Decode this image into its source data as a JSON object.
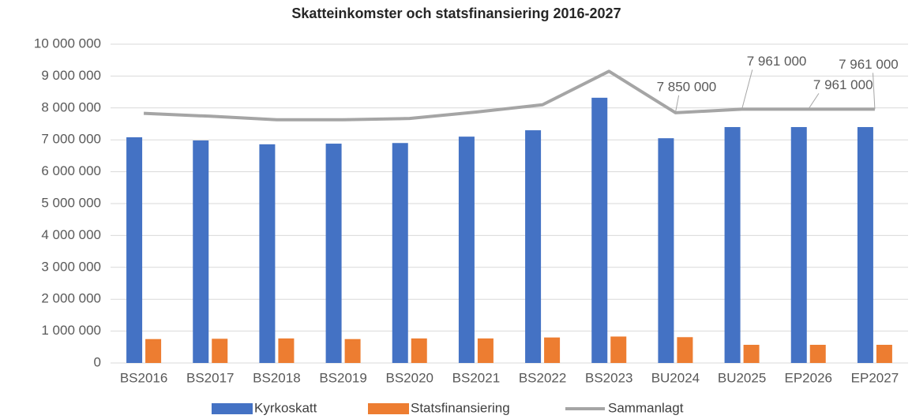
{
  "chart_data": {
    "type": "bar",
    "title": "Skatteinkomster och statsfinansiering 2016-2027",
    "categories": [
      "BS2016",
      "BS2017",
      "BS2018",
      "BS2019",
      "BS2020",
      "BS2021",
      "BS2022",
      "BS2023",
      "BU2024",
      "BU2025",
      "EP2026",
      "EP2027"
    ],
    "series": [
      {
        "name": "Kyrkoskatt",
        "type": "bar",
        "color": "#4472c4",
        "values": [
          7080000,
          6980000,
          6860000,
          6880000,
          6900000,
          7100000,
          7300000,
          8320000,
          7050000,
          7400000,
          7400000,
          7400000
        ]
      },
      {
        "name": "Statsfinansiering",
        "type": "bar",
        "color": "#ed7d31",
        "values": [
          750000,
          760000,
          770000,
          750000,
          770000,
          770000,
          800000,
          830000,
          810000,
          570000,
          570000,
          570000
        ]
      },
      {
        "name": "Sammanlagt",
        "type": "line",
        "color": "#a5a5a5",
        "values": [
          7830000,
          7740000,
          7630000,
          7630000,
          7670000,
          7870000,
          8100000,
          9150000,
          7850000,
          7961000,
          7961000,
          7961000
        ],
        "value_labels": [
          null,
          null,
          null,
          null,
          null,
          null,
          null,
          null,
          "7 850 000",
          "7 961 000",
          "7 961 000",
          "7 961 000"
        ]
      }
    ],
    "ylim": [
      0,
      10000000
    ],
    "yticks": [
      0,
      {
        "value": 1000000,
        "label": "1 000 000"
      },
      {
        "value": 2000000,
        "label": "2 000 000"
      },
      {
        "value": 3000000,
        "label": "3 000 000"
      },
      {
        "value": 4000000,
        "label": "4 000 000"
      },
      {
        "value": 5000000,
        "label": "5 000 000"
      },
      {
        "value": 6000000,
        "label": "6 000 000"
      },
      {
        "value": 7000000,
        "label": "7 000 000"
      },
      {
        "value": 8000000,
        "label": "8 000 000"
      },
      {
        "value": 9000000,
        "label": "9 000 000"
      },
      {
        "value": 10000000,
        "label": "10 000 000"
      }
    ],
    "grid": true,
    "legend": "bottom"
  }
}
